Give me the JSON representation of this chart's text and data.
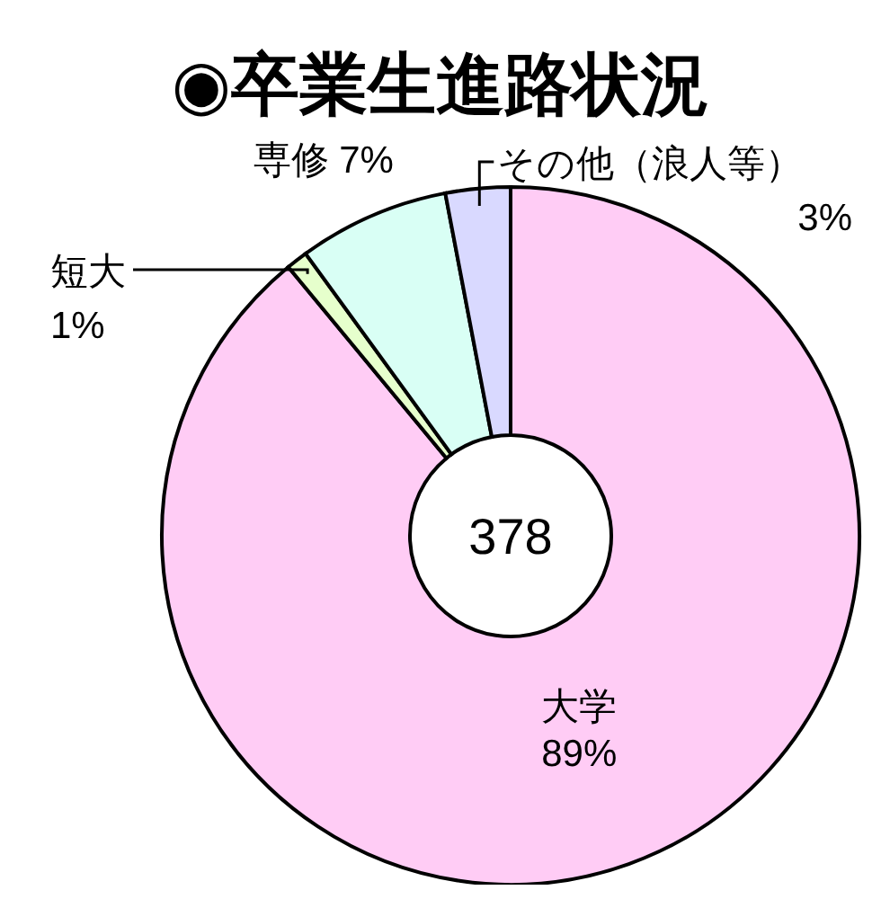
{
  "chart_data": {
    "type": "donut",
    "title": "◉卒業生進路状況",
    "categories": [
      "大学",
      "短大",
      "専修",
      "その他（浪人等）"
    ],
    "values": [
      89,
      1,
      7,
      3
    ],
    "value_labels": [
      "89%",
      "1%",
      "7%",
      "3%"
    ],
    "colors": [
      "#ffccf5",
      "#e6ffcc",
      "#d9fff5",
      "#d9d9ff"
    ],
    "annotations": [
      "378"
    ],
    "legend": false
  }
}
